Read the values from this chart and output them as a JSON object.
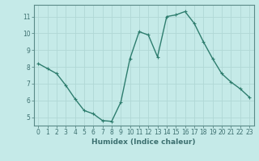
{
  "x": [
    0,
    1,
    2,
    3,
    4,
    5,
    6,
    7,
    8,
    9,
    10,
    11,
    12,
    13,
    14,
    15,
    16,
    17,
    18,
    19,
    20,
    21,
    22,
    23
  ],
  "y": [
    8.2,
    7.9,
    7.6,
    6.9,
    6.1,
    5.4,
    5.2,
    4.8,
    4.75,
    5.9,
    8.5,
    10.1,
    9.9,
    8.6,
    11.0,
    11.1,
    11.3,
    10.6,
    9.5,
    8.5,
    7.6,
    7.1,
    6.7,
    6.2
  ],
  "line_color": "#2e7d6e",
  "marker": "+",
  "marker_size": 3,
  "line_width": 1.0,
  "xlabel": "Humidex (Indice chaleur)",
  "xlim": [
    -0.5,
    23.5
  ],
  "ylim": [
    4.5,
    11.7
  ],
  "yticks": [
    5,
    6,
    7,
    8,
    9,
    10,
    11
  ],
  "xticks": [
    0,
    1,
    2,
    3,
    4,
    5,
    6,
    7,
    8,
    9,
    10,
    11,
    12,
    13,
    14,
    15,
    16,
    17,
    18,
    19,
    20,
    21,
    22,
    23
  ],
  "bg_color": "#c5eae8",
  "grid_color": "#b0d8d5",
  "tick_label_fontsize": 5.5,
  "xlabel_fontsize": 6.5,
  "axis_color": "#3d7070",
  "spine_color": "#5a8a88"
}
